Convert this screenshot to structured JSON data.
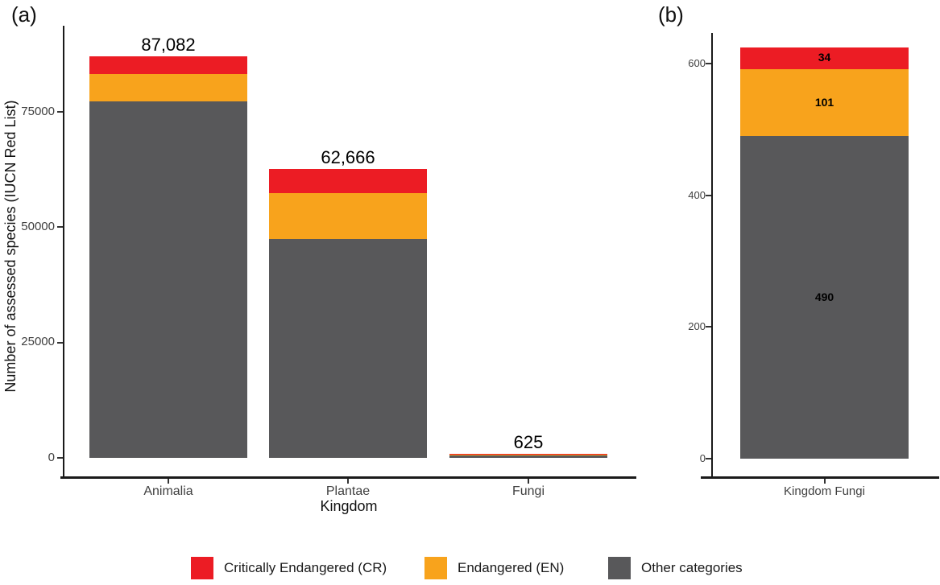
{
  "panels": {
    "a": {
      "tag": "(a)",
      "y_axis_title": "Number of assessed species (IUCN Red List)",
      "x_axis_title": "Kingdom",
      "y_tick_labels": [
        "0",
        "25000",
        "50000",
        "75000"
      ],
      "x_tick_labels": [
        "Animalia",
        "Plantae",
        "Fungi"
      ],
      "total_labels": [
        "87,082",
        "62,666",
        "625"
      ]
    },
    "b": {
      "tag": "(b)",
      "y_tick_labels": [
        "0",
        "200",
        "400",
        "600"
      ],
      "x_tick_label": "Kingdom Fungi",
      "segment_labels": [
        "34",
        "101",
        "490"
      ]
    }
  },
  "colors": {
    "critically_endangered": "#EC1C24",
    "endangered": "#F8A31C",
    "other": "#58585A",
    "axis": "#1a1a1a"
  },
  "legend": [
    {
      "label": "Critically Endangered (CR)",
      "color": "#EC1C24"
    },
    {
      "label": "Endangered (EN)",
      "color": "#F8A31C"
    },
    {
      "label": "Other categories",
      "color": "#58585A"
    }
  ],
  "chart_data": [
    {
      "type": "bar",
      "stacked": true,
      "panel": "a",
      "title": "",
      "xlabel": "Kingdom",
      "ylabel": "Number of assessed species (IUCN Red List)",
      "categories": [
        "Animalia",
        "Plantae",
        "Fungi"
      ],
      "series": [
        {
          "name": "Critically Endangered (CR)",
          "color": "#EC1C24",
          "values": [
            3900,
            5226,
            34
          ]
        },
        {
          "name": "Endangered (EN)",
          "color": "#F8A31C",
          "values": [
            5975,
            10051,
            101
          ]
        },
        {
          "name": "Other categories",
          "color": "#58585A",
          "values": [
            77207,
            47389,
            490
          ]
        }
      ],
      "totals": [
        87082,
        62666,
        625
      ],
      "total_labels": [
        "87,082",
        "62,666",
        "625"
      ],
      "yticks": [
        0,
        25000,
        50000,
        75000
      ],
      "ylim": [
        0,
        93000
      ],
      "grid": false,
      "legend_position": "bottom"
    },
    {
      "type": "bar",
      "stacked": true,
      "panel": "b",
      "title": "",
      "xlabel": "",
      "ylabel": "",
      "categories": [
        "Kingdom Fungi"
      ],
      "series": [
        {
          "name": "Critically Endangered (CR)",
          "color": "#EC1C24",
          "values": [
            34
          ]
        },
        {
          "name": "Endangered (EN)",
          "color": "#F8A31C",
          "values": [
            101
          ]
        },
        {
          "name": "Other categories",
          "color": "#58585A",
          "values": [
            490
          ]
        }
      ],
      "totals": [
        625
      ],
      "segment_labels": [
        "34",
        "101",
        "490"
      ],
      "yticks": [
        0,
        200,
        400,
        600
      ],
      "ylim": [
        0,
        646
      ],
      "grid": false,
      "legend_position": "bottom"
    }
  ]
}
